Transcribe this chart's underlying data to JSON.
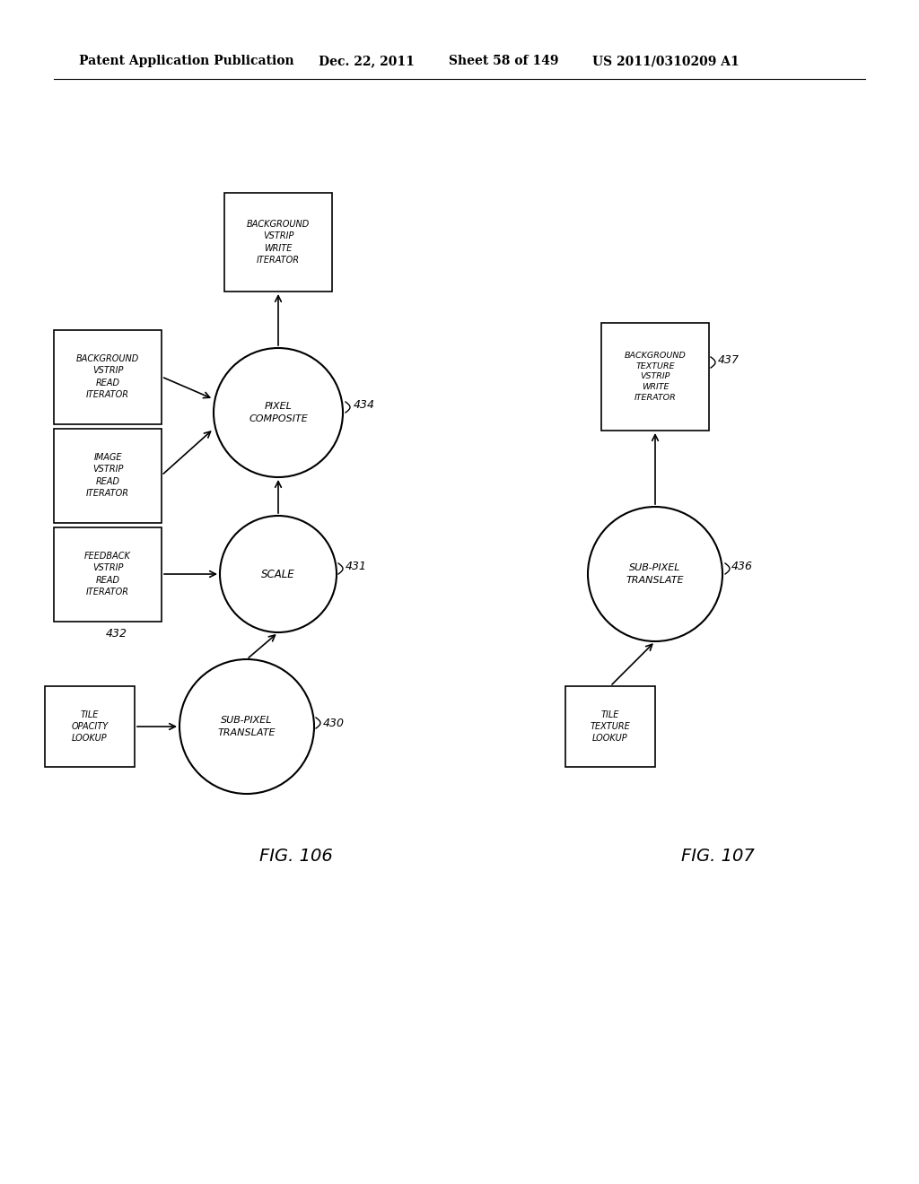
{
  "bg_color": "#ffffff",
  "header_text": "Patent Application Publication",
  "header_date": "Dec. 22, 2011",
  "header_sheet": "Sheet 58 of 149",
  "header_patent": "US 2011/0310209 A1",
  "fig106_label": "FIG. 106",
  "fig107_label": "FIG. 107"
}
